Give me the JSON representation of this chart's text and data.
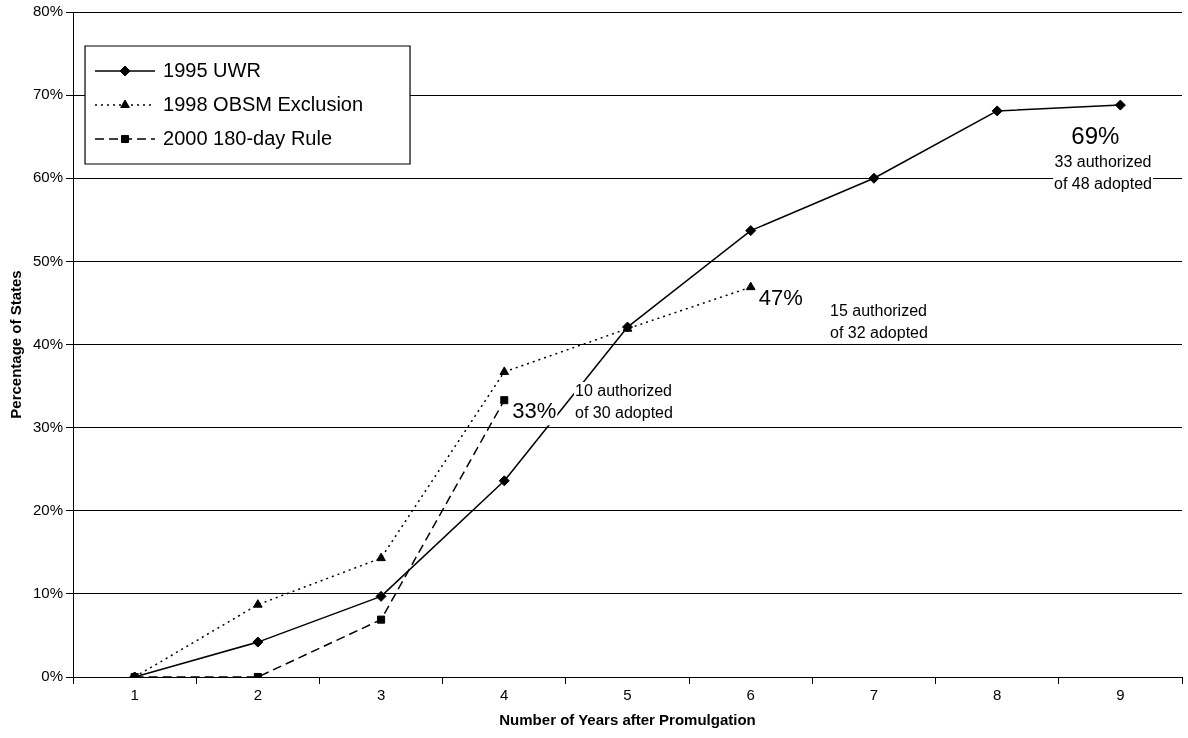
{
  "chart_data": {
    "type": "line",
    "xlabel": "Number of Years after Promulgation",
    "ylabel": "Percentage of States",
    "categories": [
      "1",
      "2",
      "3",
      "4",
      "5",
      "6",
      "7",
      "8",
      "9"
    ],
    "series": [
      {
        "name": "1995 UWR",
        "color": "#000000",
        "marker": "diamond",
        "line_style": "solid",
        "values": [
          0,
          4.2,
          9.7,
          23.6,
          42.1,
          53.7,
          60,
          68.1,
          68.8
        ]
      },
      {
        "name": "1998 OBSM Exclusion",
        "color": "#000000",
        "marker": "triangle",
        "line_style": "dotted",
        "values": [
          0,
          8.7,
          14.3,
          36.7,
          41.9,
          46.9,
          null,
          null,
          null
        ]
      },
      {
        "name": "2000 180-day Rule",
        "color": "#000000",
        "marker": "square",
        "line_style": "dashed",
        "values": [
          0,
          0,
          6.9,
          33.3,
          null,
          null,
          null,
          null,
          null
        ]
      }
    ],
    "ylim": [
      0,
      80
    ],
    "yticks": [
      {
        "value": 0,
        "label": "0%"
      },
      {
        "value": 10,
        "label": "10%"
      },
      {
        "value": 20,
        "label": "20%"
      },
      {
        "value": 30,
        "label": "30%"
      },
      {
        "value": 40,
        "label": "40%"
      },
      {
        "value": 50,
        "label": "50%"
      },
      {
        "value": 60,
        "label": "60%"
      },
      {
        "value": 70,
        "label": "70%"
      },
      {
        "value": 80,
        "label": "80%"
      }
    ],
    "grid": "y",
    "legend": "top left",
    "annotations": [
      {
        "text": "69%",
        "x": "9",
        "y": 68.8
      },
      "33 authorized\nof 48 adopted",
      {
        "text": "47%",
        "x": "6",
        "y": 46.9
      },
      "15 authorized\nof 32 adopted",
      {
        "text": "33%",
        "x": "4",
        "y": 33.3
      },
      "10 authorized\nof 30 adopted"
    ]
  }
}
